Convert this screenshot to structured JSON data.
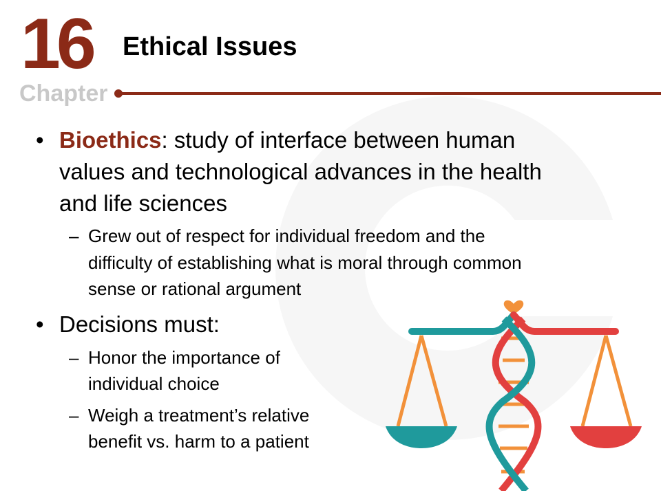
{
  "chapter": {
    "number": "16",
    "label": "Chapter"
  },
  "title": "Ethical Issues",
  "bullets": [
    {
      "term": "Bioethics",
      "line1_rest": ": study of interface between human",
      "line2": "values and technological advances in the health",
      "line3": "and life sciences",
      "sub": {
        "line1": "Grew out of respect for individual freedom and the",
        "line2": "difficulty of establishing what is moral through common",
        "line3": "sense or rational argument"
      }
    },
    {
      "text": "Decisions must:",
      "subs": [
        {
          "line1": "Honor the importance of",
          "line2": "individual choice"
        },
        {
          "line1": "Weigh a treatment’s relative",
          "line2": "benefit vs. harm to a patient"
        }
      ]
    }
  ],
  "glyphs": {
    "bullet": "•",
    "dash": "–"
  },
  "colors": {
    "accent": "#8b2a17",
    "teal": "#1f9a9c",
    "red": "#e2403f",
    "orange": "#f2913a"
  },
  "icons": [
    "scales-dna-illustration",
    "heart-icon"
  ]
}
